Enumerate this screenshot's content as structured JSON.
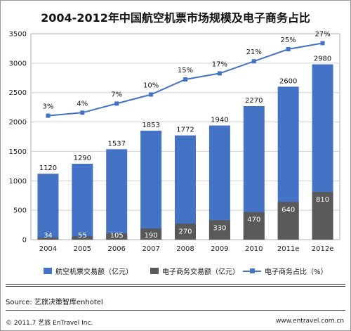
{
  "chart_data": {
    "type": "bar",
    "title": "2004-2012年中国航空机票市场规模及电子商务占比",
    "categories": [
      "2004",
      "2005",
      "2006",
      "2007",
      "2008",
      "2009",
      "2010",
      "2011e",
      "2012e"
    ],
    "ylim": [
      0,
      3500
    ],
    "yticks": [
      "0",
      "500",
      "1000",
      "1500",
      "2000",
      "2500",
      "3000",
      "3500"
    ],
    "series": [
      {
        "name": "航空机票交易额（亿元）",
        "kind": "bar",
        "color": "#4472c4",
        "values": [
          1120,
          1290,
          1537,
          1853,
          1772,
          1940,
          2270,
          2600,
          2980
        ]
      },
      {
        "name": "电子商务交易额（亿元）",
        "kind": "bar",
        "color": "#595959",
        "values": [
          34,
          55,
          105,
          190,
          270,
          330,
          470,
          640,
          810
        ]
      },
      {
        "name": "电子商务占比（%）",
        "kind": "line",
        "color": "#4472c4",
        "values": [
          3,
          4,
          7,
          10,
          15,
          17,
          21,
          25,
          27
        ],
        "labels": [
          "3%",
          "4%",
          "7%",
          "10%",
          "15%",
          "17%",
          "21%",
          "25%",
          "27%"
        ]
      }
    ],
    "grid": true,
    "legend": "bottom"
  },
  "footer": {
    "source": "Source: 艺旅决策智库enhotel",
    "copyright": "© 2011.7 艺旅 EnTravel Inc.",
    "site": "www.entravel.com.cn"
  }
}
